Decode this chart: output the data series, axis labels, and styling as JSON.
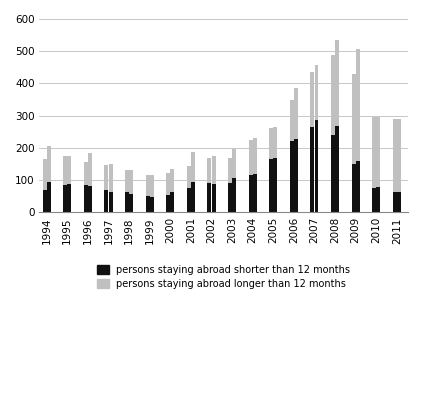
{
  "years": [
    1994,
    1995,
    1996,
    1997,
    1998,
    1999,
    2000,
    2001,
    2002,
    2003,
    2004,
    2005,
    2006,
    2007,
    2008,
    2009,
    2010,
    2011
  ],
  "short_q1": [
    70,
    85,
    85,
    68,
    62,
    50,
    55,
    75,
    90,
    90,
    115,
    165,
    220,
    265,
    240,
    150,
    75,
    63
  ],
  "short_q2": [
    95,
    88,
    82,
    62,
    58,
    47,
    63,
    95,
    88,
    105,
    118,
    168,
    228,
    288,
    268,
    158,
    78,
    62
  ],
  "long_q1": [
    95,
    90,
    72,
    80,
    68,
    65,
    68,
    68,
    78,
    78,
    108,
    98,
    128,
    172,
    248,
    278,
    222,
    228
  ],
  "long_q2": [
    112,
    88,
    103,
    88,
    72,
    68,
    73,
    93,
    88,
    93,
    113,
    98,
    158,
    168,
    268,
    348,
    218,
    228
  ],
  "short_color": "#111111",
  "long_color": "#c0c0c0",
  "background_color": "#ffffff",
  "grid_color": "#b0b0b0",
  "ylim": [
    0,
    600
  ],
  "yticks": [
    0,
    100,
    200,
    300,
    400,
    500,
    600
  ],
  "legend_short": "persons staying abroad shorter than 12 months",
  "legend_long": "persons staying abroad longer than 12 months",
  "legend_fontsize": 7,
  "tick_fontsize": 7.5,
  "bar_width": 0.38
}
